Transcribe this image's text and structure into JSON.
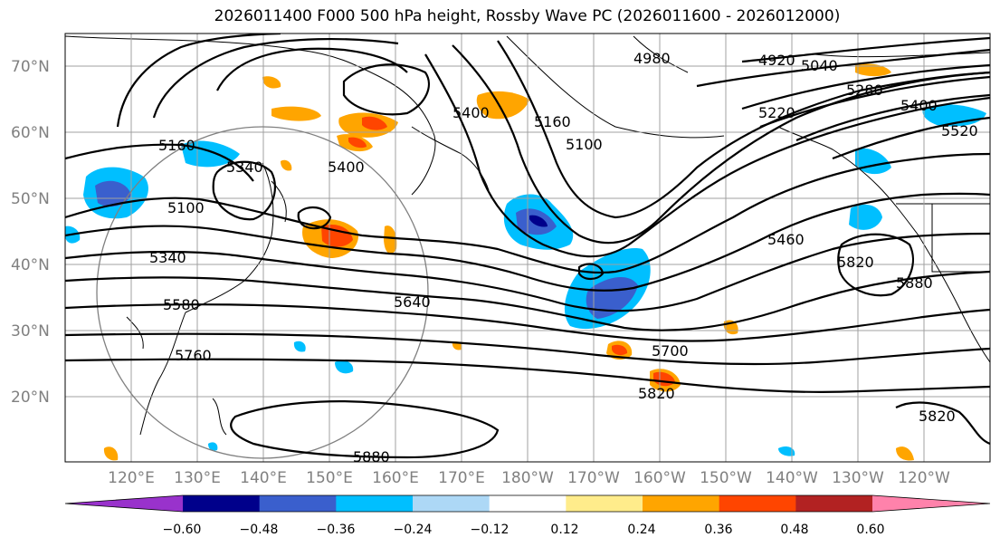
{
  "title": "2026011400 F000 500 hPa height, Rossby Wave PC (2026011600 - 2026012000)",
  "lat_labels": [
    "70°N",
    "60°N",
    "50°N",
    "40°N",
    "30°N",
    "20°N"
  ],
  "lon_labels": [
    "120°E",
    "130°E",
    "140°E",
    "150°E",
    "160°E",
    "170°E",
    "180°W",
    "170°W",
    "160°W",
    "150°W",
    "140°W",
    "130°W",
    "120°W"
  ],
  "contour_labels": [
    "4920",
    "5040",
    "5160",
    "5280",
    "5400",
    "5520",
    "5160",
    "5100",
    "5400",
    "4980",
    "5340",
    "5100",
    "5340",
    "5460",
    "5580",
    "5640",
    "5700",
    "5760",
    "5820",
    "5820",
    "5880",
    "5880",
    "5820",
    "5220",
    "5400"
  ],
  "colorbar": {
    "colors": [
      "#9932CC",
      "#00008B",
      "#3A5FCD",
      "#00BFFF",
      "#ADD8F6",
      "#FFFFFF",
      "#FFEC8B",
      "#FFA500",
      "#FF4500",
      "#B22222",
      "#FF82AB"
    ],
    "ticks": [
      "−0.60",
      "−0.48",
      "−0.36",
      "−0.24",
      "−0.12",
      "0.12",
      "0.24",
      "0.36",
      "0.48",
      "0.60"
    ]
  }
}
